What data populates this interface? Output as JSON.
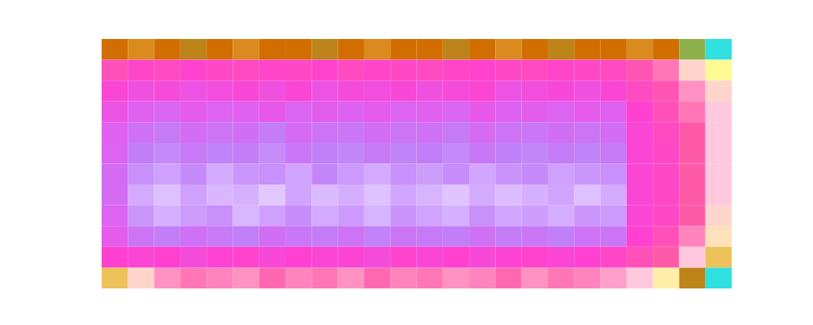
{
  "chart_data": {
    "type": "heatmap",
    "tick_labels": false,
    "xlim": [
      0,
      24
    ],
    "ylim": [
      0,
      12
    ],
    "color_range": [
      0,
      1
    ],
    "cells": [
      [
        0.93,
        0.92,
        0.93,
        0.94,
        0.93,
        0.92,
        0.93,
        0.93,
        0.94,
        0.93,
        0.92,
        0.93,
        0.93,
        0.94,
        0.93,
        0.92,
        0.93,
        0.94,
        0.93,
        0.93,
        0.92,
        0.93,
        0.96,
        1.0
      ],
      [
        0.68,
        0.64,
        0.66,
        0.63,
        0.65,
        0.66,
        0.64,
        0.65,
        0.63,
        0.66,
        0.64,
        0.65,
        0.66,
        0.64,
        0.63,
        0.65,
        0.66,
        0.64,
        0.65,
        0.66,
        0.7,
        0.74,
        0.82,
        0.88
      ],
      [
        0.6,
        0.56,
        0.58,
        0.55,
        0.57,
        0.59,
        0.56,
        0.6,
        0.55,
        0.58,
        0.57,
        0.59,
        0.56,
        0.58,
        0.6,
        0.55,
        0.57,
        0.59,
        0.56,
        0.6,
        0.66,
        0.7,
        0.76,
        0.82
      ],
      [
        0.55,
        0.5,
        0.47,
        0.52,
        0.48,
        0.5,
        0.53,
        0.47,
        0.51,
        0.49,
        0.52,
        0.48,
        0.5,
        0.47,
        0.53,
        0.49,
        0.51,
        0.48,
        0.52,
        0.5,
        0.62,
        0.68,
        0.74,
        0.8
      ],
      [
        0.5,
        0.42,
        0.38,
        0.44,
        0.4,
        0.43,
        0.37,
        0.45,
        0.41,
        0.39,
        0.44,
        0.4,
        0.42,
        0.38,
        0.45,
        0.41,
        0.39,
        0.43,
        0.4,
        0.44,
        0.6,
        0.66,
        0.72,
        0.8
      ],
      [
        0.48,
        0.36,
        0.32,
        0.38,
        0.34,
        0.37,
        0.31,
        0.39,
        0.35,
        0.33,
        0.38,
        0.34,
        0.36,
        0.32,
        0.39,
        0.35,
        0.33,
        0.37,
        0.34,
        0.38,
        0.6,
        0.65,
        0.72,
        0.8
      ],
      [
        0.45,
        0.3,
        0.25,
        0.32,
        0.22,
        0.28,
        0.3,
        0.24,
        0.33,
        0.27,
        0.22,
        0.3,
        0.26,
        0.31,
        0.23,
        0.29,
        0.32,
        0.25,
        0.28,
        0.3,
        0.6,
        0.65,
        0.72,
        0.8
      ],
      [
        0.45,
        0.22,
        0.15,
        0.25,
        0.18,
        0.2,
        0.12,
        0.24,
        0.17,
        0.21,
        0.14,
        0.23,
        0.19,
        0.13,
        0.22,
        0.16,
        0.2,
        0.24,
        0.15,
        0.22,
        0.6,
        0.65,
        0.72,
        0.8
      ],
      [
        0.48,
        0.28,
        0.2,
        0.26,
        0.3,
        0.18,
        0.25,
        0.31,
        0.22,
        0.27,
        0.19,
        0.29,
        0.24,
        0.2,
        0.3,
        0.23,
        0.26,
        0.21,
        0.28,
        0.27,
        0.6,
        0.65,
        0.72,
        0.82
      ],
      [
        0.52,
        0.4,
        0.36,
        0.42,
        0.38,
        0.35,
        0.43,
        0.39,
        0.37,
        0.41,
        0.34,
        0.4,
        0.38,
        0.36,
        0.42,
        0.37,
        0.39,
        0.35,
        0.41,
        0.4,
        0.62,
        0.68,
        0.75,
        0.84
      ],
      [
        0.62,
        0.6,
        0.62,
        0.58,
        0.61,
        0.63,
        0.59,
        0.62,
        0.6,
        0.61,
        0.58,
        0.63,
        0.6,
        0.62,
        0.59,
        0.61,
        0.63,
        0.6,
        0.62,
        0.64,
        0.68,
        0.72,
        0.8,
        0.9
      ],
      [
        0.9,
        0.82,
        0.76,
        0.74,
        0.75,
        0.76,
        0.73,
        0.75,
        0.74,
        0.76,
        0.73,
        0.75,
        0.74,
        0.76,
        0.75,
        0.73,
        0.76,
        0.74,
        0.75,
        0.77,
        0.8,
        0.86,
        0.94,
        1.0
      ]
    ]
  }
}
